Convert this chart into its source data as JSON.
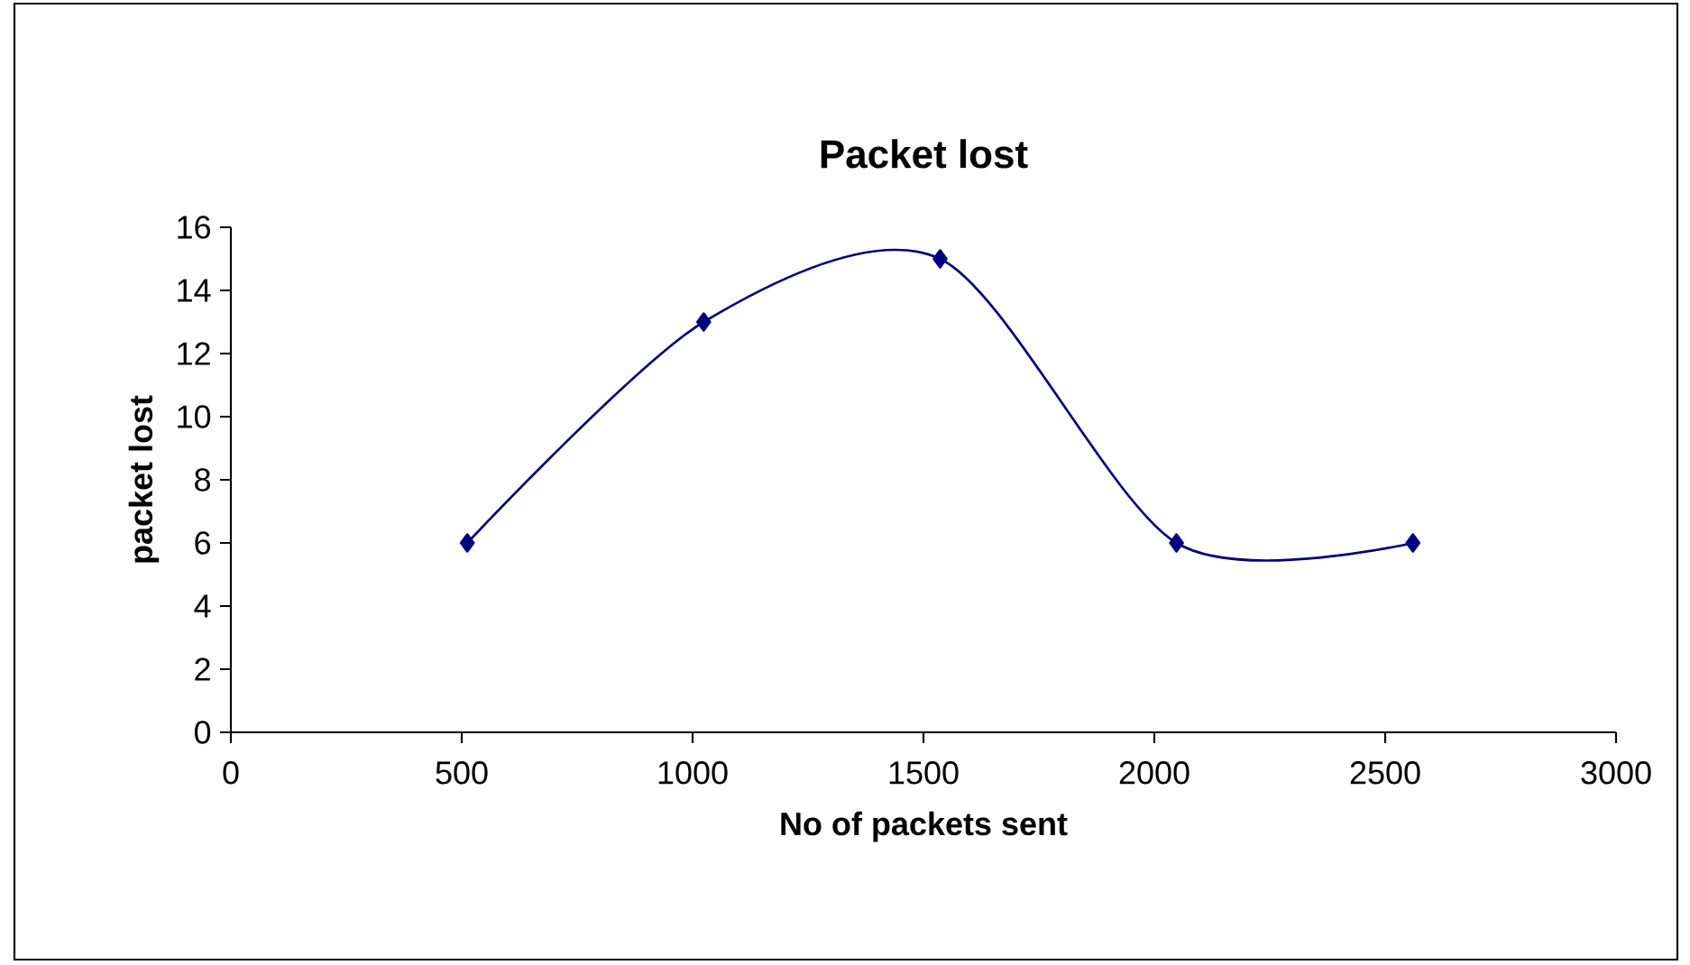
{
  "chart_data": {
    "type": "line",
    "title": "Packet lost",
    "xlabel": "No of packets sent",
    "ylabel": "packet lost",
    "x": [
      512,
      1024,
      1536,
      2048,
      2560
    ],
    "series": [
      {
        "color": "#000080",
        "values": [
          6,
          13,
          15,
          6,
          6
        ]
      }
    ],
    "xlim": [
      0,
      3000
    ],
    "ylim": [
      0,
      16
    ],
    "xticks": [
      0,
      500,
      1000,
      1500,
      2000,
      2500,
      3000
    ],
    "yticks": [
      0,
      2,
      4,
      6,
      8,
      10,
      12,
      14,
      16
    ],
    "marker": "diamond",
    "grid": false
  }
}
